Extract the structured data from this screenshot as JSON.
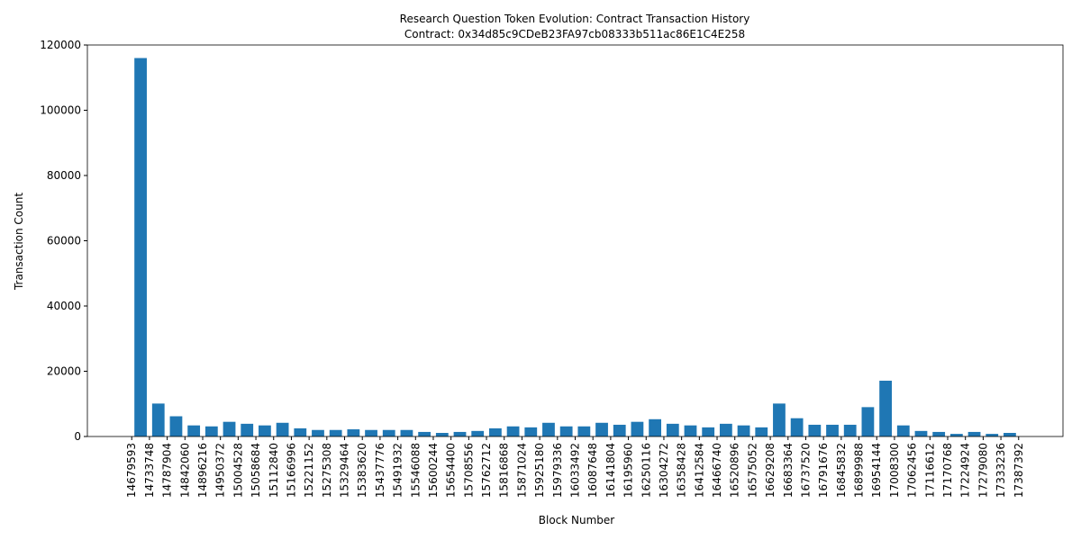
{
  "chart_data": {
    "type": "histogram",
    "title": "Research Question Token Evolution: Contract Transaction History",
    "subtitle": "Contract: 0x34d85c9CDeB23FA97cb08333b511ac86E1C4E258",
    "x_label": "Block Number",
    "y_label": "Transaction Count",
    "bins": [
      14679593,
      14733748,
      14787904,
      14842060,
      14896216,
      14950372,
      15004528,
      15058684,
      15112840,
      15166996,
      15221152,
      15275308,
      15329464,
      15383620,
      15437776,
      15491932,
      15546088,
      15600244,
      15654400,
      15708556,
      15762712,
      15816868,
      15871024,
      15925180,
      15979336,
      16033492,
      16087648,
      16141804,
      16195960,
      16250116,
      16304272,
      16358428,
      16412584,
      16466740,
      16520896,
      16575052,
      16629208,
      16683364,
      16737520,
      16791676,
      16845832,
      16899988,
      16954144,
      17008300,
      17062456,
      17116612,
      17170768,
      17224924,
      17279080,
      17333236,
      17387392
    ],
    "values": [
      116000,
      10100,
      6200,
      3400,
      3100,
      4500,
      3900,
      3400,
      4200,
      2500,
      2000,
      2000,
      2200,
      2000,
      2000,
      2000,
      1400,
      1100,
      1400,
      1700,
      2500,
      3100,
      2800,
      4200,
      3100,
      3100,
      4200,
      3600,
      4500,
      5300,
      3900,
      3400,
      2800,
      3900,
      3400,
      2800,
      10100,
      5600,
      3600,
      3600,
      3600,
      9000,
      17100,
      3400,
      1700,
      1400,
      800,
      1400,
      800,
      1100
    ],
    "color": "#1f77b4",
    "xlim": [
      14544203,
      17522782
    ],
    "ylim": [
      0,
      120000
    ],
    "yticks": [
      0,
      20000,
      40000,
      60000,
      80000,
      100000,
      120000
    ]
  }
}
